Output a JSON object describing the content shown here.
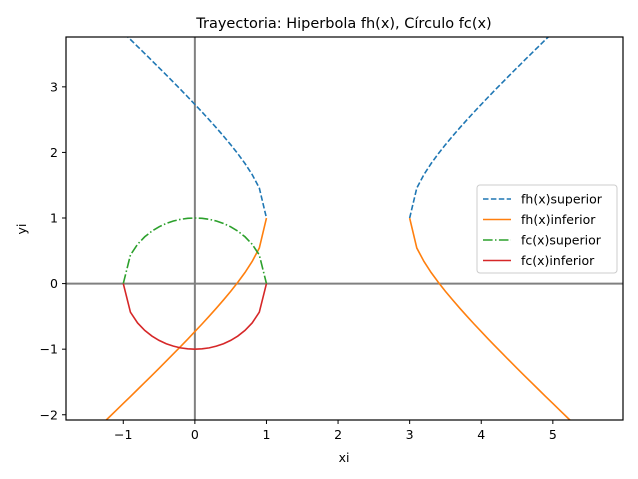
{
  "chart_data": {
    "type": "line",
    "title": "Trayectoria: Hiperbola fh(x), Círculo fc(x)",
    "xlabel": "xi",
    "ylabel": "yi",
    "xlim": [
      -1.8,
      5.98
    ],
    "ylim": [
      -2.08,
      3.76
    ],
    "grid": false,
    "legend_position": "center right",
    "xticks": [
      -1,
      0,
      1,
      2,
      3,
      4,
      5
    ],
    "xtick_labels": [
      "−1",
      "0",
      "1",
      "2",
      "3",
      "4",
      "5"
    ],
    "yticks": [
      -2,
      -1,
      0,
      1,
      2,
      3
    ],
    "ytick_labels": [
      "−2",
      "−1",
      "0",
      "1",
      "2",
      "3"
    ],
    "reference_lines": {
      "x0": 0,
      "y0": 0,
      "color": "#808080"
    },
    "series": [
      {
        "name": "fh(x)superior",
        "color": "#1f77b4",
        "style": "dashed",
        "segments": [
          {
            "x": [
              -1.3,
              -1.2,
              -1.1,
              -1.0,
              -0.9,
              -0.8,
              -0.7,
              -0.6,
              -0.5,
              -0.4,
              -0.3,
              -0.2,
              -0.1,
              0.0,
              0.1,
              0.2,
              0.3,
              0.4,
              0.5,
              0.6,
              0.7,
              0.8,
              0.9,
              1.0
            ],
            "y": [
              4.145,
              4.04,
              3.934,
              3.828,
              3.722,
              3.615,
              3.508,
              3.4,
              3.291,
              3.182,
              3.071,
              2.96,
              2.847,
              2.732,
              2.616,
              2.497,
              2.375,
              2.249,
              2.118,
              1.98,
              1.831,
              1.663,
              1.458,
              1.0
            ]
          },
          {
            "x": [
              3.0,
              3.1,
              3.2,
              3.3,
              3.4,
              3.5,
              3.6,
              3.7,
              3.8,
              3.9,
              4.0,
              4.1,
              4.2,
              4.3,
              4.4,
              4.5,
              4.6,
              4.7,
              4.8,
              4.9,
              5.0,
              5.1,
              5.2,
              5.3
            ],
            "y": [
              1.0,
              1.458,
              1.663,
              1.831,
              1.98,
              2.118,
              2.249,
              2.375,
              2.497,
              2.616,
              2.732,
              2.847,
              2.96,
              3.071,
              3.182,
              3.291,
              3.4,
              3.508,
              3.615,
              3.722,
              3.828,
              3.934,
              4.04,
              4.145
            ]
          }
        ]
      },
      {
        "name": "fh(x)inferior",
        "color": "#ff7f0e",
        "style": "solid",
        "segments": [
          {
            "x": [
              -1.3,
              -1.2,
              -1.1,
              -1.0,
              -0.9,
              -0.8,
              -0.7,
              -0.6,
              -0.5,
              -0.4,
              -0.3,
              -0.2,
              -0.1,
              0.0,
              0.1,
              0.2,
              0.3,
              0.4,
              0.5,
              0.6,
              0.7,
              0.8,
              0.9,
              1.0
            ],
            "y": [
              -2.145,
              -2.04,
              -1.934,
              -1.828,
              -1.722,
              -1.615,
              -1.508,
              -1.4,
              -1.291,
              -1.182,
              -1.071,
              -0.96,
              -0.847,
              -0.732,
              -0.616,
              -0.497,
              -0.375,
              -0.249,
              -0.118,
              0.02,
              0.169,
              0.337,
              0.542,
              1.0
            ]
          },
          {
            "x": [
              3.0,
              3.1,
              3.2,
              3.3,
              3.4,
              3.5,
              3.6,
              3.7,
              3.8,
              3.9,
              4.0,
              4.1,
              4.2,
              4.3,
              4.4,
              4.5,
              4.6,
              4.7,
              4.8,
              4.9,
              5.0,
              5.1,
              5.2,
              5.3
            ],
            "y": [
              1.0,
              0.542,
              0.337,
              0.169,
              0.02,
              -0.118,
              -0.249,
              -0.375,
              -0.497,
              -0.616,
              -0.732,
              -0.847,
              -0.96,
              -1.071,
              -1.182,
              -1.291,
              -1.4,
              -1.508,
              -1.615,
              -1.722,
              -1.828,
              -1.934,
              -2.04,
              -2.145
            ]
          }
        ]
      },
      {
        "name": "fc(x)superior",
        "color": "#2ca02c",
        "style": "dashdot",
        "segments": [
          {
            "x": [
              -1.0,
              -0.9,
              -0.8,
              -0.7,
              -0.6,
              -0.5,
              -0.4,
              -0.3,
              -0.2,
              -0.1,
              0.0,
              0.1,
              0.2,
              0.3,
              0.4,
              0.5,
              0.6,
              0.7,
              0.8,
              0.9,
              1.0
            ],
            "y": [
              0.0,
              0.436,
              0.6,
              0.714,
              0.8,
              0.866,
              0.917,
              0.954,
              0.98,
              0.995,
              1.0,
              0.995,
              0.98,
              0.954,
              0.917,
              0.866,
              0.8,
              0.714,
              0.6,
              0.436,
              0.0
            ]
          }
        ]
      },
      {
        "name": "fc(x)inferior",
        "color": "#d62728",
        "style": "solid",
        "segments": [
          {
            "x": [
              -1.0,
              -0.9,
              -0.8,
              -0.7,
              -0.6,
              -0.5,
              -0.4,
              -0.3,
              -0.2,
              -0.1,
              0.0,
              0.1,
              0.2,
              0.3,
              0.4,
              0.5,
              0.6,
              0.7,
              0.8,
              0.9,
              1.0
            ],
            "y": [
              0.0,
              -0.436,
              -0.6,
              -0.714,
              -0.8,
              -0.866,
              -0.917,
              -0.954,
              -0.98,
              -0.995,
              -1.0,
              -0.995,
              -0.98,
              -0.954,
              -0.917,
              -0.866,
              -0.8,
              -0.714,
              -0.6,
              -0.436,
              0.0
            ]
          }
        ]
      }
    ]
  }
}
